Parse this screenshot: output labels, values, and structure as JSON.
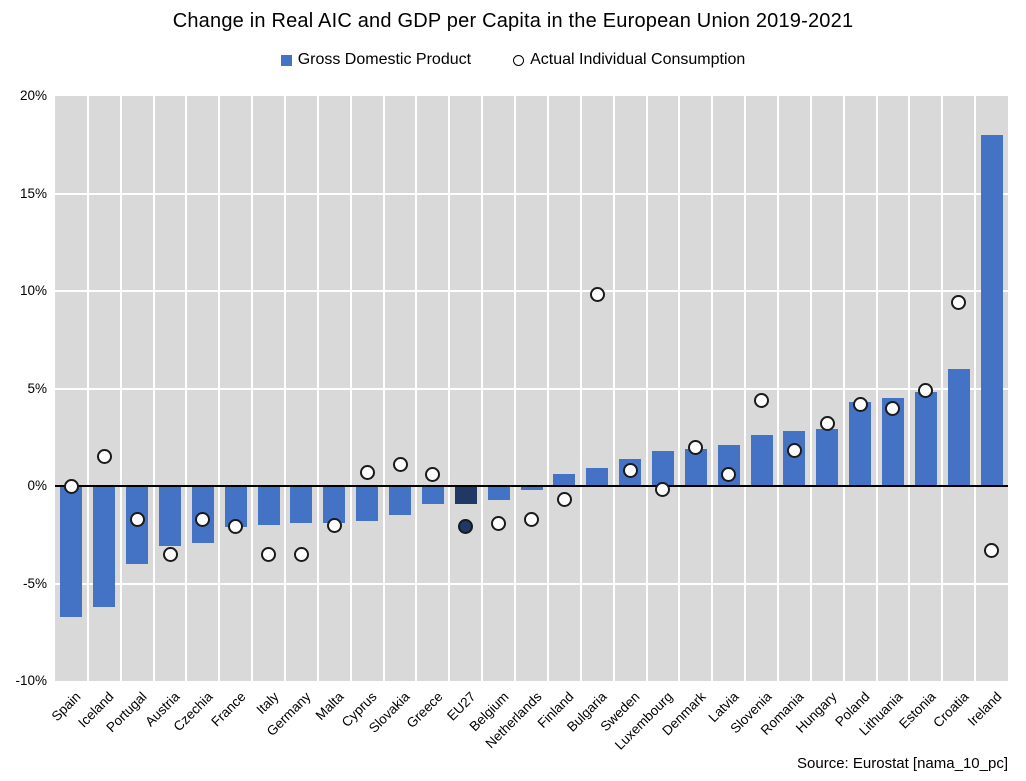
{
  "title": "Change in Real AIC and GDP per Capita in the European Union 2019-2021",
  "legend": {
    "gdp_label": "Gross Domestic Product",
    "aic_label": "Actual Individual Consumption"
  },
  "source": "Source: Eurostat [nama_10_pc]",
  "colors": {
    "bar_blue": "#4472C4",
    "highlight_navy": "#1F3864",
    "plot_background": "#D9D9D9",
    "gridline_white": "#FFFFFF",
    "zero_line_black": "#000000",
    "marker_fill_white": "#FFFFFF",
    "marker_stroke_black": "#1A1A1A"
  },
  "chart_data": {
    "type": "bar",
    "title": "Change in Real AIC and GDP per Capita in the European Union 2019-2021",
    "xlabel": "",
    "ylabel": "",
    "ylim": [
      -10,
      20
    ],
    "ytick_step": 5,
    "ytick_labels": [
      "20%",
      "15%",
      "10%",
      "5%",
      "0%",
      "-5%",
      "-10%"
    ],
    "grid": true,
    "legend_position": "top",
    "highlight_category": "EU27",
    "categories": [
      "Spain",
      "Iceland",
      "Portugal",
      "Austria",
      "Czechia",
      "France",
      "Italy",
      "Germany",
      "Malta",
      "Cyprus",
      "Slovakia",
      "Greece",
      "EU27",
      "Belgium",
      "Netherlands",
      "Finland",
      "Bulgaria",
      "Sweden",
      "Luxembourg",
      "Denmark",
      "Latvia",
      "Slovenia",
      "Romania",
      "Hungary",
      "Poland",
      "Lithuania",
      "Estonia",
      "Croatia",
      "Ireland"
    ],
    "series": [
      {
        "name": "Gross Domestic Product",
        "style": "bar",
        "values": [
          -6.7,
          -6.2,
          -4.0,
          -3.1,
          -2.9,
          -2.1,
          -2.0,
          -1.9,
          -1.9,
          -1.8,
          -1.5,
          -0.9,
          -0.9,
          -0.7,
          -0.2,
          0.6,
          0.9,
          1.4,
          1.8,
          1.9,
          2.1,
          2.6,
          2.8,
          2.9,
          4.3,
          4.5,
          4.8,
          6.0,
          18.0
        ]
      },
      {
        "name": "Actual Individual Consumption",
        "style": "scatter-circle",
        "values": [
          0.0,
          1.5,
          -1.7,
          -3.5,
          -1.7,
          -2.1,
          -3.5,
          -3.5,
          -2.0,
          0.7,
          1.1,
          0.6,
          -2.1,
          -1.9,
          -1.7,
          -0.7,
          9.8,
          0.8,
          -0.2,
          2.0,
          0.6,
          4.4,
          1.8,
          3.2,
          4.2,
          4.0,
          4.9,
          9.4,
          -3.3
        ]
      }
    ]
  }
}
